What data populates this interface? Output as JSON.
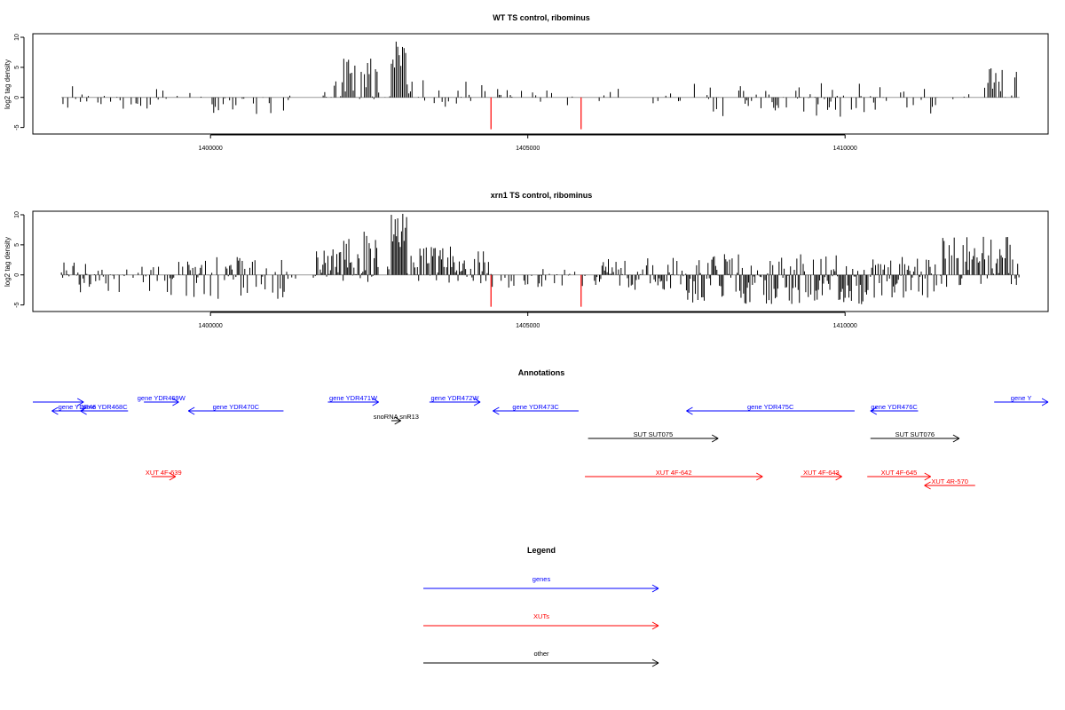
{
  "colors": {
    "genes": "#0000ff",
    "xuts": "#ff0000",
    "other": "#000000",
    "axis": "#000000",
    "baseline": "#999999",
    "mark": "#ff0000"
  },
  "chart_data": [
    {
      "type": "bar",
      "title": "WT TS control, ribominus",
      "xlabel": "",
      "ylabel": "log2 tag density",
      "xlim": [
        1397200,
        1413200
      ],
      "ylim": [
        -5.5,
        10
      ],
      "yticks": [
        -5,
        0,
        5,
        10
      ],
      "xticks": [
        1400000,
        1405000,
        1410000
      ],
      "x_start": 1397650,
      "x_end": 1412750,
      "bin_width": 25,
      "ymax_peak": 9.6,
      "markers": [
        {
          "x": 1404420,
          "y": -5.3
        },
        {
          "x": 1405840,
          "y": -5.3
        }
      ],
      "signal_regions": [
        {
          "x0": 1397650,
          "x1": 1398100,
          "lo": -2,
          "hi": 2.5,
          "density": 0.55
        },
        {
          "x0": 1398100,
          "x1": 1399100,
          "lo": -2.5,
          "hi": 0.5,
          "density": 0.35
        },
        {
          "x0": 1399100,
          "x1": 1399800,
          "lo": -1,
          "hi": 1.5,
          "density": 0.25
        },
        {
          "x0": 1399800,
          "x1": 1401200,
          "lo": -3,
          "hi": 0.5,
          "density": 0.35
        },
        {
          "x0": 1401200,
          "x1": 1401700,
          "lo": -0.5,
          "hi": 0.5,
          "density": 0.1
        },
        {
          "x0": 1401700,
          "x1": 1402100,
          "lo": -1,
          "hi": 3.5,
          "density": 0.6
        },
        {
          "x0": 1402100,
          "x1": 1402650,
          "lo": -0.5,
          "hi": 6.5,
          "density": 0.95
        },
        {
          "x0": 1402650,
          "x1": 1402850,
          "lo": -0.3,
          "hi": 1,
          "density": 0.2
        },
        {
          "x0": 1402850,
          "x1": 1403100,
          "lo": 0,
          "hi": 9.6,
          "density": 1
        },
        {
          "x0": 1403100,
          "x1": 1404400,
          "lo": -2,
          "hi": 3,
          "density": 0.45
        },
        {
          "x0": 1404400,
          "x1": 1406000,
          "lo": -1.5,
          "hi": 1.5,
          "density": 0.2
        },
        {
          "x0": 1406000,
          "x1": 1407600,
          "lo": -1,
          "hi": 1.5,
          "density": 0.2
        },
        {
          "x0": 1407600,
          "x1": 1410300,
          "lo": -3.5,
          "hi": 2.5,
          "density": 0.45
        },
        {
          "x0": 1410300,
          "x1": 1411500,
          "lo": -3.5,
          "hi": 2,
          "density": 0.45
        },
        {
          "x0": 1411500,
          "x1": 1412200,
          "lo": -0.5,
          "hi": 1,
          "density": 0.1
        },
        {
          "x0": 1412200,
          "x1": 1412750,
          "lo": -0.5,
          "hi": 5.2,
          "density": 0.6
        }
      ]
    },
    {
      "type": "bar",
      "title": "xrn1 TS control, ribominus",
      "xlabel": "",
      "ylabel": "log2 tag density",
      "xlim": [
        1397200,
        1413200
      ],
      "ylim": [
        -5.5,
        10
      ],
      "yticks": [
        -5,
        0,
        5,
        10
      ],
      "xticks": [
        1400000,
        1405000,
        1410000
      ],
      "x_start": 1397650,
      "x_end": 1412750,
      "bin_width": 20,
      "ymax_peak": 10.3,
      "markers": [
        {
          "x": 1404420,
          "y": -5.3
        },
        {
          "x": 1405840,
          "y": -5.3
        }
      ],
      "signal_regions": [
        {
          "x0": 1397650,
          "x1": 1398400,
          "lo": -3,
          "hi": 2.5,
          "density": 0.7
        },
        {
          "x0": 1398400,
          "x1": 1399300,
          "lo": -3,
          "hi": 1.5,
          "density": 0.5
        },
        {
          "x0": 1399300,
          "x1": 1401200,
          "lo": -4,
          "hi": 3,
          "density": 0.7
        },
        {
          "x0": 1401200,
          "x1": 1401650,
          "lo": -1,
          "hi": 1.5,
          "density": 0.3
        },
        {
          "x0": 1401650,
          "x1": 1402100,
          "lo": -1,
          "hi": 4.5,
          "density": 0.8
        },
        {
          "x0": 1402100,
          "x1": 1402650,
          "lo": -1.5,
          "hi": 7.5,
          "density": 1
        },
        {
          "x0": 1402650,
          "x1": 1402850,
          "lo": -0.3,
          "hi": 1.5,
          "density": 0.3
        },
        {
          "x0": 1402850,
          "x1": 1403100,
          "lo": 0,
          "hi": 10.3,
          "density": 1
        },
        {
          "x0": 1403100,
          "x1": 1404400,
          "lo": -1.5,
          "hi": 4.8,
          "density": 0.9
        },
        {
          "x0": 1404400,
          "x1": 1406050,
          "lo": -2.5,
          "hi": 1,
          "density": 0.35
        },
        {
          "x0": 1406050,
          "x1": 1407500,
          "lo": -2.5,
          "hi": 3,
          "density": 0.85
        },
        {
          "x0": 1407500,
          "x1": 1410300,
          "lo": -5,
          "hi": 3.5,
          "density": 0.95
        },
        {
          "x0": 1410300,
          "x1": 1411500,
          "lo": -4,
          "hi": 3,
          "density": 0.95
        },
        {
          "x0": 1411500,
          "x1": 1412750,
          "lo": -2,
          "hi": 6.5,
          "density": 0.75
        }
      ]
    }
  ],
  "annotations": {
    "title": "Annotations",
    "features": [
      {
        "label": "",
        "kind": "gene",
        "start": 1397200,
        "end": 1398000,
        "strand": "+",
        "track": 0,
        "label_track": 0
      },
      {
        "label": "gene YDR46",
        "kind": "gene",
        "start": 1397500,
        "end": 1398300,
        "strand": "-",
        "track": 1,
        "label_track": 1
      },
      {
        "label": "gene YDR468C",
        "kind": "gene",
        "start": 1397950,
        "end": 1398700,
        "strand": "-",
        "track": 1,
        "label_track": 1
      },
      {
        "label": "gene YDR469W",
        "kind": "gene",
        "start": 1398950,
        "end": 1399500,
        "strand": "+",
        "track": 0,
        "label_track": 0
      },
      {
        "label": "gene YDR470C",
        "kind": "gene",
        "start": 1399650,
        "end": 1401150,
        "strand": "-",
        "track": 1,
        "label_track": 1
      },
      {
        "label": "gene YDR471W",
        "kind": "gene",
        "start": 1401850,
        "end": 1402650,
        "strand": "+",
        "track": 0,
        "label_track": 0
      },
      {
        "label": "snoRNA snR13",
        "kind": "other",
        "start": 1402850,
        "end": 1403000,
        "strand": "+",
        "track": 2,
        "label_track": 2
      },
      {
        "label": "gene YDR472W",
        "kind": "gene",
        "start": 1403450,
        "end": 1404250,
        "strand": "+",
        "track": 0,
        "label_track": 0
      },
      {
        "label": "gene YDR473C",
        "kind": "gene",
        "start": 1404450,
        "end": 1405800,
        "strand": "-",
        "track": 1,
        "label_track": 1
      },
      {
        "label": "gene YDR475C",
        "kind": "gene",
        "start": 1407500,
        "end": 1410150,
        "strand": "-",
        "track": 1,
        "label_track": 1
      },
      {
        "label": "gene YDR476C",
        "kind": "gene",
        "start": 1410400,
        "end": 1411150,
        "strand": "-",
        "track": 1,
        "label_track": 1
      },
      {
        "label": "gene Y",
        "kind": "gene",
        "start": 1412350,
        "end": 1413200,
        "strand": "+",
        "track": 0,
        "label_track": 0
      },
      {
        "label": "SUT SUT075",
        "kind": "other",
        "start": 1405950,
        "end": 1408000,
        "strand": "+",
        "track": 3,
        "label_track": 3
      },
      {
        "label": "SUT SUT076",
        "kind": "other",
        "start": 1410400,
        "end": 1411800,
        "strand": "+",
        "track": 3,
        "label_track": 3
      },
      {
        "label": "XUT 4F-639",
        "kind": "xut",
        "start": 1399070,
        "end": 1399450,
        "strand": "+",
        "track": 4,
        "label_track": 4
      },
      {
        "label": "XUT 4F-642",
        "kind": "xut",
        "start": 1405900,
        "end": 1408700,
        "strand": "+",
        "track": 4,
        "label_track": 4
      },
      {
        "label": "XUT 4F-643",
        "kind": "xut",
        "start": 1409300,
        "end": 1409950,
        "strand": "+",
        "track": 4,
        "label_track": 4
      },
      {
        "label": "XUT 4F-645",
        "kind": "xut",
        "start": 1410350,
        "end": 1411350,
        "strand": "+",
        "track": 4,
        "label_track": 4
      },
      {
        "label": "XUT 4R-570",
        "kind": "xut",
        "start": 1411250,
        "end": 1412050,
        "strand": "-",
        "track": 5,
        "label_track": 5
      }
    ]
  },
  "legend": {
    "title": "Legend",
    "entries": [
      {
        "label": "genes",
        "kind": "gene"
      },
      {
        "label": "XUTs",
        "kind": "xut"
      },
      {
        "label": "other",
        "kind": "other"
      }
    ]
  }
}
